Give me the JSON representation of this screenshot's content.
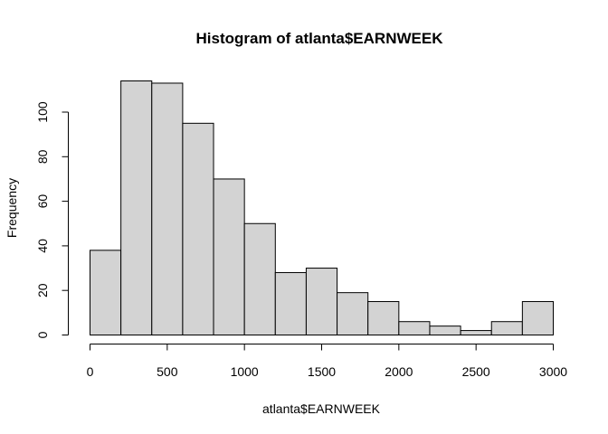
{
  "chart_data": {
    "type": "bar",
    "title": "Histogram of atlanta$EARNWEEK",
    "xlabel": "atlanta$EARNWEEK",
    "ylabel": "Frequency",
    "bin_edges": [
      0,
      200,
      400,
      600,
      800,
      1000,
      1200,
      1400,
      1600,
      1800,
      2000,
      2200,
      2400,
      2600,
      2800,
      3000
    ],
    "values": [
      38,
      114,
      113,
      95,
      70,
      50,
      28,
      30,
      19,
      15,
      6,
      4,
      2,
      6,
      15
    ],
    "xlim": [
      0,
      3000
    ],
    "ylim": [
      0,
      114
    ],
    "x_ticks": [
      0,
      500,
      1000,
      1500,
      2000,
      2500,
      3000
    ],
    "y_ticks": [
      0,
      20,
      40,
      60,
      80,
      100
    ],
    "bar_fill": "#d3d3d3",
    "bar_stroke": "#000000",
    "grid": false
  }
}
